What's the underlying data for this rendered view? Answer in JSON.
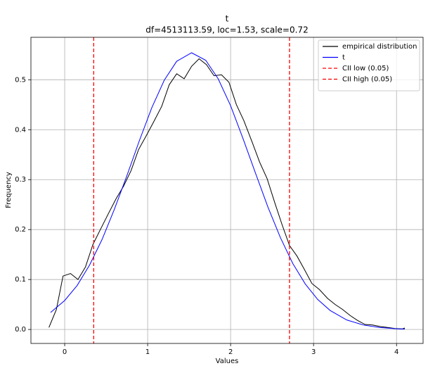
{
  "chart_data": {
    "type": "line",
    "title": "t",
    "subtitle": "df=4513113.59, loc=1.53, scale=0.72",
    "x_label": "Values",
    "y_label": "Frequency",
    "xlim": [
      -0.407,
      4.32
    ],
    "ylim": [
      -0.028,
      0.585
    ],
    "xticks": [
      0,
      1,
      2,
      3,
      4
    ],
    "yticks": [
      {
        "value": 0,
        "label": "0.0"
      },
      0.1,
      0.2,
      0.3,
      0.4,
      0.5
    ],
    "grid": true,
    "legend": "upper right",
    "series": [
      {
        "name": "empirical distribution",
        "color": "#000000",
        "x": [
          -0.19,
          -0.1,
          -0.02,
          0.07,
          0.16,
          0.25,
          0.34,
          0.43,
          0.53,
          0.62,
          0.71,
          0.8,
          0.89,
          0.99,
          1.08,
          1.17,
          1.26,
          1.35,
          1.44,
          1.53,
          1.62,
          1.71,
          1.8,
          1.89,
          1.98,
          2.07,
          2.16,
          2.26,
          2.35,
          2.44,
          2.53,
          2.62,
          2.71,
          2.8,
          2.89,
          2.98,
          3.07,
          3.17,
          3.26,
          3.35,
          3.44,
          3.53,
          3.62,
          3.71,
          3.8,
          3.89,
          3.98,
          4.07,
          4.1
        ],
        "values": [
          0.004,
          0.04,
          0.107,
          0.112,
          0.1,
          0.125,
          0.17,
          0.2,
          0.233,
          0.262,
          0.287,
          0.318,
          0.36,
          0.39,
          0.418,
          0.447,
          0.49,
          0.512,
          0.502,
          0.527,
          0.542,
          0.53,
          0.508,
          0.51,
          0.495,
          0.45,
          0.418,
          0.375,
          0.335,
          0.302,
          0.255,
          0.21,
          0.168,
          0.147,
          0.12,
          0.092,
          0.08,
          0.062,
          0.05,
          0.04,
          0.028,
          0.018,
          0.01,
          0.009,
          0.006,
          0.004,
          0.002,
          0.001,
          0.003
        ]
      },
      {
        "name": "t",
        "color": "#0000ff",
        "x": [
          -0.17,
          0,
          0.15,
          0.3,
          0.45,
          0.6,
          0.75,
          0.9,
          1.05,
          1.2,
          1.35,
          1.53,
          1.7,
          1.85,
          2.0,
          2.15,
          2.3,
          2.45,
          2.6,
          2.75,
          2.9,
          3.05,
          3.2,
          3.4,
          3.6,
          3.8,
          4.0,
          4.1
        ],
        "values": [
          0.034,
          0.058,
          0.088,
          0.129,
          0.18,
          0.241,
          0.308,
          0.378,
          0.444,
          0.499,
          0.537,
          0.554,
          0.539,
          0.502,
          0.448,
          0.382,
          0.313,
          0.245,
          0.184,
          0.132,
          0.091,
          0.06,
          0.038,
          0.019,
          0.0089,
          0.0038,
          0.0015,
          0.0009
        ]
      }
    ],
    "vlines": [
      {
        "name": "CII low (0.05)",
        "color": "#ff0000",
        "x": 0.35,
        "style": "dashed"
      },
      {
        "name": "CII high (0.05)",
        "color": "#ff0000",
        "x": 2.71,
        "style": "dashed"
      }
    ]
  }
}
